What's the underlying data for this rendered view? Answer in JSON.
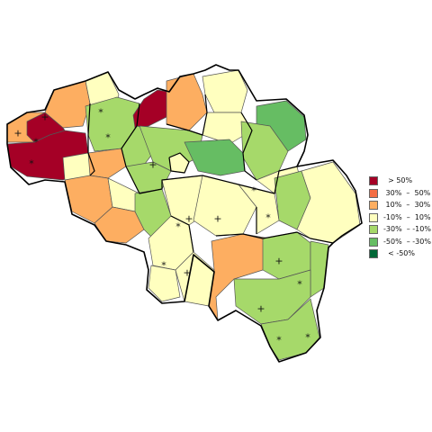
{
  "map": {
    "colors": {
      "gt50": "#a50026",
      "30to50": "#f46d43",
      "10to30": "#fdae61",
      "m10to10": "#ffffbf",
      "m30tom10": "#a6d96a",
      "m50tom30": "#66bd63",
      "ltm50": "#006837",
      "border": "#000000"
    },
    "markers": {
      "plus": "+",
      "star": "*"
    }
  },
  "legend": {
    "items": [
      {
        "label": "  > 50%",
        "color": "#a50026"
      },
      {
        "label": " 30%  –  50%",
        "color": "#f46d43"
      },
      {
        "label": " 10%  –  30%",
        "color": "#fdae61"
      },
      {
        "label": "-10%  –  10%",
        "color": "#ffffbf"
      },
      {
        "label": "-30%  – -10%",
        "color": "#a6d96a"
      },
      {
        "label": "-50%  – -30%",
        "color": "#66bd63"
      },
      {
        "label": "  < -50%",
        "color": "#006837"
      }
    ]
  }
}
